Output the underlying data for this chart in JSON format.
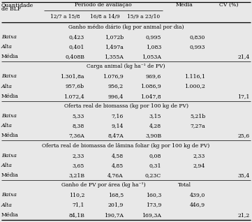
{
  "bg_color": "#e8e8e8",
  "header1_left": "Quantidade",
  "header2_left": "de BLF",
  "header_period": "Período de avaliação",
  "subcols": [
    "12/7 a 15/8",
    "16/8 a 14/9",
    "15/9 a 23/10"
  ],
  "col_media": "Média",
  "col_cv": "CV (%)",
  "sections": [
    {
      "title": "Ganho médio diário (kg por animal por dia)",
      "title_extra": null,
      "rows": [
        [
          "Baixa",
          "0,423",
          "1,072b",
          "0,995",
          "0,830",
          ""
        ],
        [
          "Alta",
          "0,401",
          "1,497a",
          "1,083",
          "0,993",
          ""
        ],
        [
          "Média",
          "0,408B",
          "1,355A",
          "1,053A",
          "",
          "21,4"
        ]
      ]
    },
    {
      "title": "Carga animal (kg ha⁻¹ de PV)",
      "title_extra": null,
      "rows": [
        [
          "Baixa",
          "1.301,8a",
          "1.076,9",
          "969,6",
          "1.116,1",
          ""
        ],
        [
          "Alta",
          "957,6b",
          "956,2",
          "1.086,9",
          "1.000,2",
          ""
        ],
        [
          "Média",
          "1.072,4",
          "996,4",
          "1.047,8",
          "",
          "17,1"
        ]
      ]
    },
    {
      "title": "Oferta real de biomassa (kg por 100 kg de PV)",
      "title_extra": null,
      "rows": [
        [
          "Baixa",
          "5,33",
          "7,16",
          "3,15",
          "5,21b",
          ""
        ],
        [
          "Alta",
          "8,38",
          "9,14",
          "4,28",
          "7,27a",
          ""
        ],
        [
          "Média",
          "7,36A",
          "8,47A",
          "3,90B",
          "",
          "25,6"
        ]
      ]
    },
    {
      "title": "Oferta real de biomassa de lâmina foliar (kg por 100 kg de PV)",
      "title_extra": null,
      "rows": [
        [
          "Baixa",
          "2,33",
          "4,58",
          "0,08",
          "2,33",
          ""
        ],
        [
          "Alta",
          "3,65",
          "4,85",
          "0,31",
          "2,94",
          ""
        ],
        [
          "Média",
          "3,21B",
          "4,76A",
          "0,23C",
          "",
          "35,4"
        ]
      ]
    },
    {
      "title": "Ganho de PV por área (kg ha⁻¹)",
      "title_extra": "Total",
      "rows": [
        [
          "Baixa",
          "110,2",
          "168,5",
          "160,3",
          "439,0",
          ""
        ],
        [
          "Alta",
          " 71,1",
          "201,9",
          "173,9",
          "446,9",
          ""
        ],
        [
          "Média",
          "84,1B",
          "190,7A",
          "169,3A",
          "",
          "21,2"
        ]
      ]
    }
  ]
}
